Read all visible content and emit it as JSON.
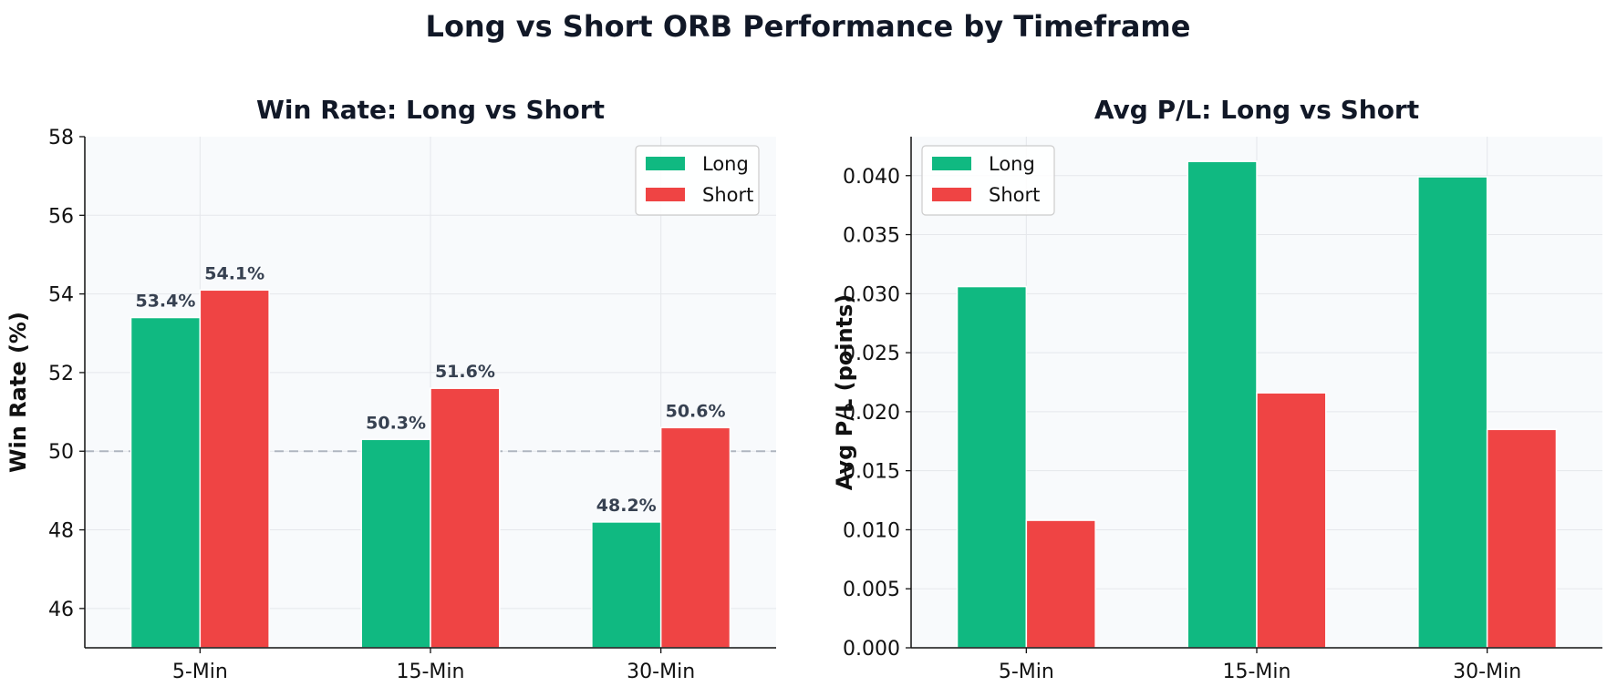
{
  "figure_title": "Long vs Short ORB Performance by Timeframe",
  "colors": {
    "long": "#10b981",
    "short": "#ef4444",
    "plot_background": "#f8fafc",
    "grid": "#e5e7eb",
    "reference_line": "#9ca3af"
  },
  "chart_data": [
    {
      "type": "bar",
      "title": "Win Rate: Long vs Short",
      "xlabel": "",
      "ylabel": "Win Rate (%)",
      "categories": [
        "5-Min",
        "15-Min",
        "30-Min"
      ],
      "series": [
        {
          "name": "Long",
          "values": [
            53.4,
            50.3,
            48.2
          ],
          "labels": [
            "53.4%",
            "50.3%",
            "48.2%"
          ]
        },
        {
          "name": "Short",
          "values": [
            54.1,
            51.6,
            50.6
          ],
          "labels": [
            "54.1%",
            "51.6%",
            "50.6%"
          ]
        }
      ],
      "ylim": [
        45,
        58
      ],
      "yticks": [
        46,
        48,
        50,
        52,
        54,
        56,
        58
      ],
      "ytick_labels": [
        "46",
        "48",
        "50",
        "52",
        "54",
        "56",
        "58"
      ],
      "reference_line": 50,
      "grid": true,
      "legend_position": "top-right"
    },
    {
      "type": "bar",
      "title": "Avg P/L: Long vs Short",
      "xlabel": "",
      "ylabel": "Avg P/L (points)",
      "categories": [
        "5-Min",
        "15-Min",
        "30-Min"
      ],
      "series": [
        {
          "name": "Long",
          "values": [
            0.0306,
            0.0412,
            0.0399
          ]
        },
        {
          "name": "Short",
          "values": [
            0.0108,
            0.0216,
            0.0185
          ]
        }
      ],
      "ylim": [
        0,
        0.0433
      ],
      "yticks": [
        0,
        0.005,
        0.01,
        0.015,
        0.02,
        0.025,
        0.03,
        0.035,
        0.04
      ],
      "ytick_labels": [
        "0.000",
        "0.005",
        "0.010",
        "0.015",
        "0.020",
        "0.025",
        "0.030",
        "0.035",
        "0.040"
      ],
      "grid": true,
      "legend_position": "top-left"
    }
  ]
}
